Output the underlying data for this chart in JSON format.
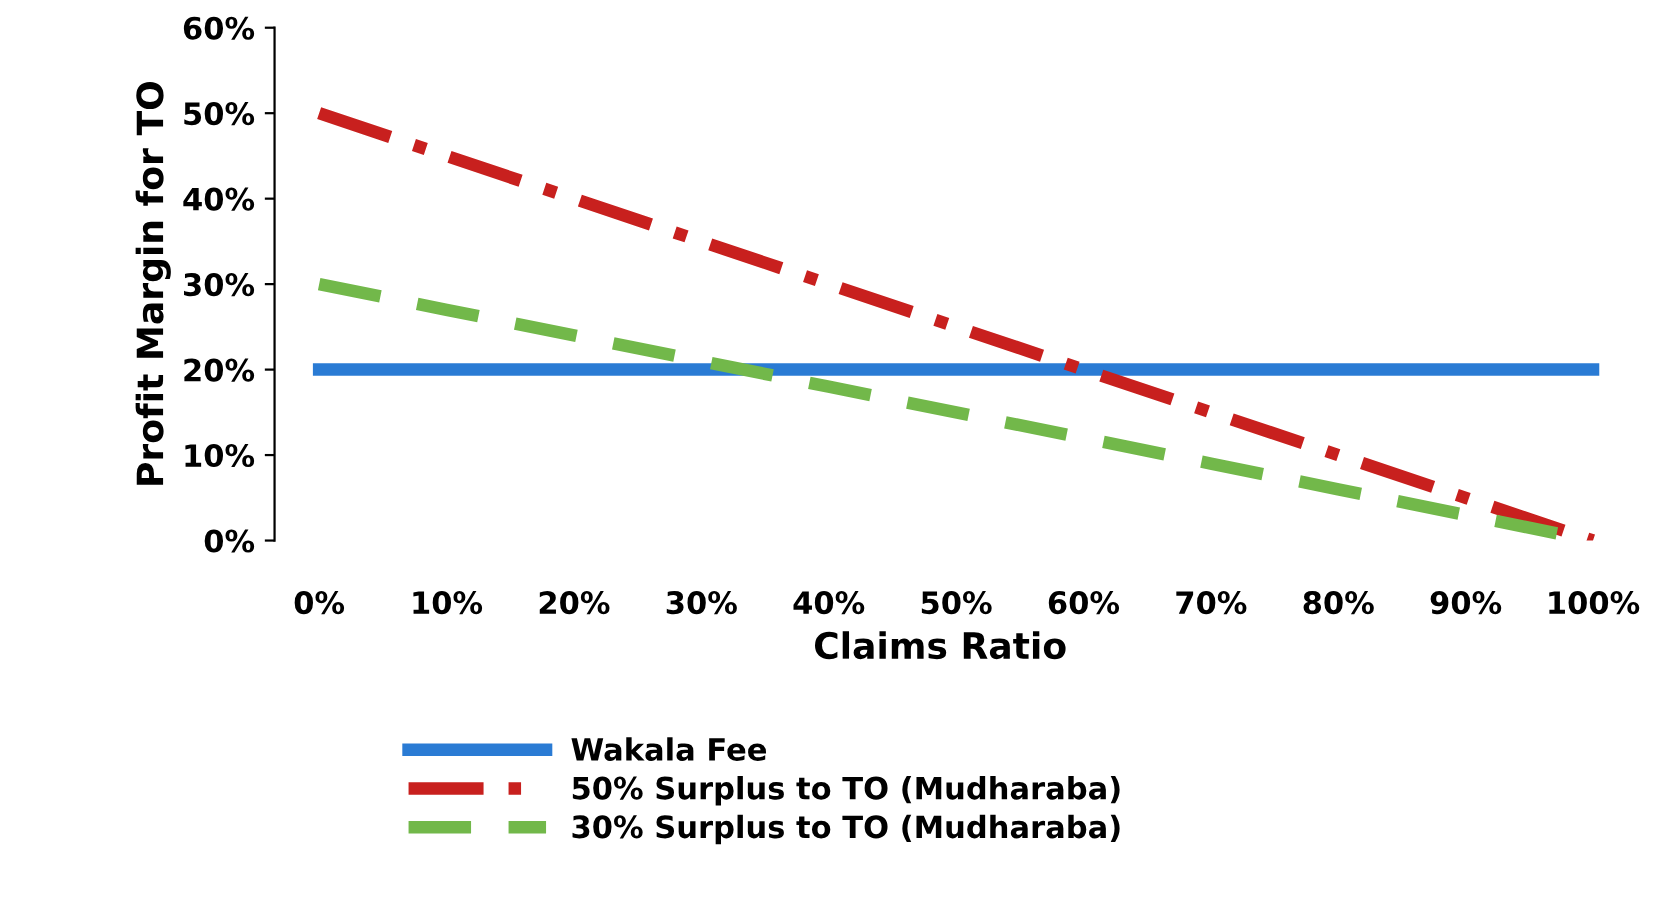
{
  "chart_data": {
    "type": "line",
    "xlabel": "Claims Ratio",
    "ylabel": "Profit Margin for TO",
    "categories": [
      "0%",
      "10%",
      "20%",
      "30%",
      "40%",
      "50%",
      "60%",
      "70%",
      "80%",
      "90%",
      "100%"
    ],
    "series": [
      {
        "name": "Wakala Fee",
        "color": "#2a7bd4",
        "line_style": "solid",
        "values": [
          20,
          20,
          20,
          20,
          20,
          20,
          20,
          20,
          20,
          20,
          20
        ]
      },
      {
        "name": "50% Surplus to TO (Mudharaba)",
        "color": "#c8201e",
        "line_style": "dashdot",
        "values": [
          50,
          45,
          40,
          35,
          30,
          25,
          20,
          15,
          10,
          5,
          0
        ]
      },
      {
        "name": "30% Surplus to TO (Mudharaba)",
        "color": "#72b84a",
        "line_style": "dashed",
        "values": [
          30,
          27,
          24,
          21,
          18,
          15,
          12,
          9,
          6,
          3,
          0
        ]
      }
    ],
    "ylim": [
      0,
      60
    ],
    "yticks": [
      {
        "value": 0,
        "label": "0%"
      },
      {
        "value": 10,
        "label": "10%"
      },
      {
        "value": 20,
        "label": "20%"
      },
      {
        "value": 30,
        "label": "30%"
      },
      {
        "value": 40,
        "label": "40%"
      },
      {
        "value": 50,
        "label": "50%"
      },
      {
        "value": 60,
        "label": "60%"
      }
    ],
    "grid": false,
    "legend": "bottom",
    "marker": "none"
  }
}
